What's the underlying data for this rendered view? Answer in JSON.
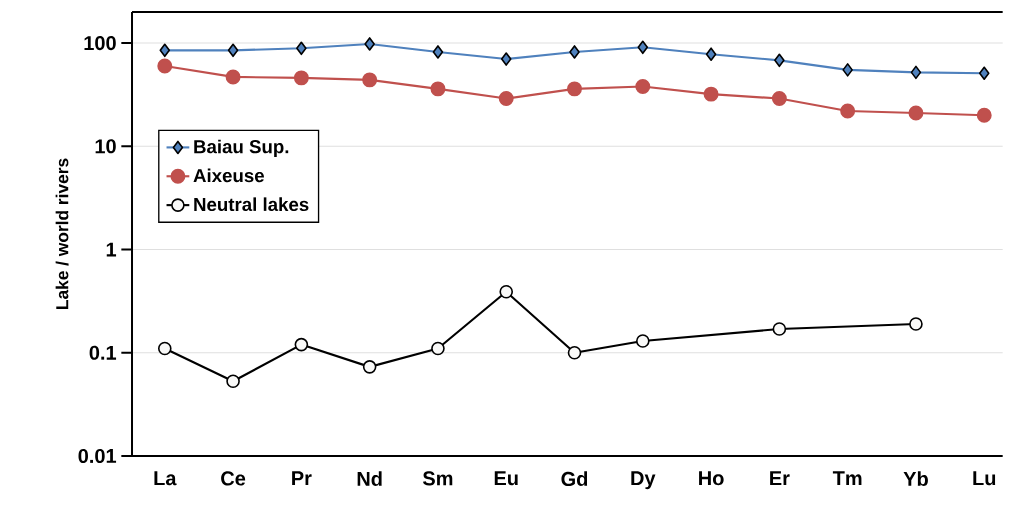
{
  "chart_data": {
    "type": "line",
    "ylabel": "Lake / world rivers",
    "categories": [
      "La",
      "Ce",
      "Pr",
      "Nd",
      "Sm",
      "Eu",
      "Gd",
      "Dy",
      "Ho",
      "Er",
      "Tm",
      "Yb",
      "Lu"
    ],
    "series": [
      {
        "name": "Baiau Sup.",
        "color": "#4f81bd",
        "marker": "diamond",
        "values": [
          85,
          85,
          89,
          98,
          82,
          70,
          82,
          91,
          78,
          68,
          55,
          52,
          51
        ]
      },
      {
        "name": "Aixeuse",
        "color": "#c0504d",
        "marker": "circle",
        "values": [
          60,
          47,
          46,
          44,
          36,
          29,
          36,
          38,
          32,
          29,
          22,
          21,
          20
        ]
      },
      {
        "name": "Neutral lakes",
        "color": "#000000",
        "marker": "circle",
        "values": [
          0.11,
          0.053,
          0.12,
          0.073,
          0.11,
          0.39,
          0.1,
          0.13,
          null,
          0.17,
          null,
          0.19,
          null
        ]
      }
    ],
    "log": "y",
    "ylim": [
      0.01,
      200
    ],
    "yticks": [
      0.01,
      0.1,
      1,
      10,
      100
    ],
    "grid": "y",
    "legend": "left"
  }
}
